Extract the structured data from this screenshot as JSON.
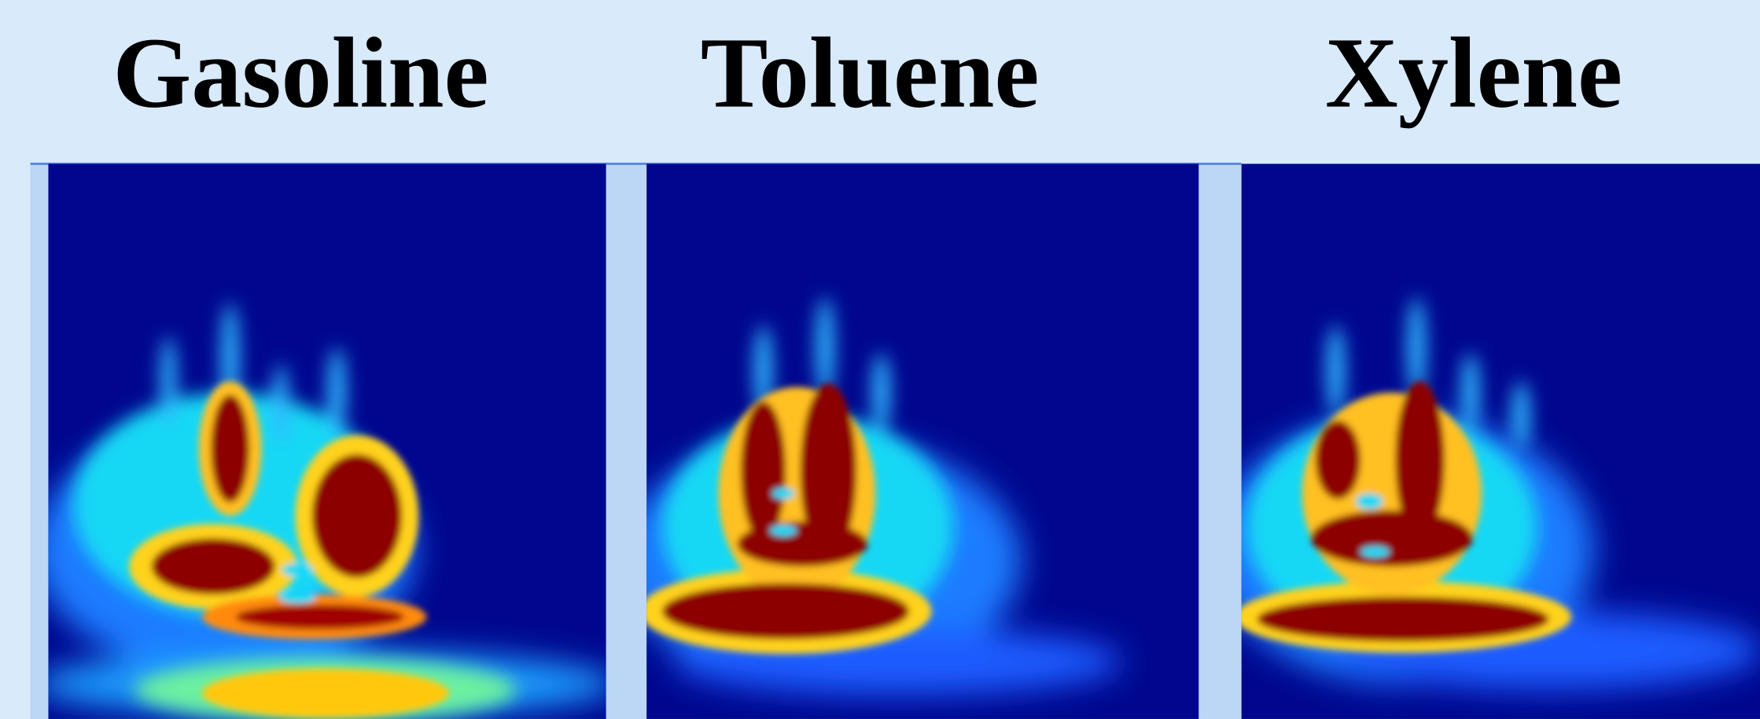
{
  "panels": [
    {
      "title": "Gasoline"
    },
    {
      "title": "Toluene"
    },
    {
      "title": "Xylene"
    }
  ]
}
